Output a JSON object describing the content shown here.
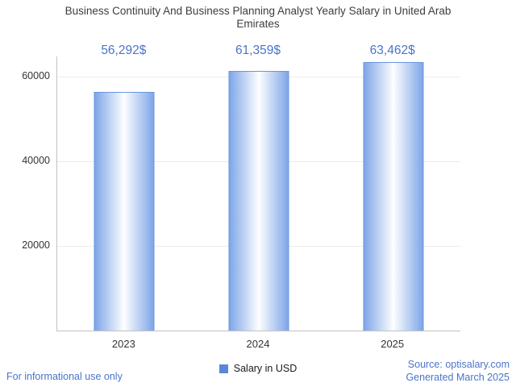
{
  "chart_data": {
    "type": "bar",
    "title": "Business Continuity And Business Planning Analyst Yearly Salary in United Arab Emirates",
    "categories": [
      "2023",
      "2024",
      "2025"
    ],
    "values": [
      56292,
      61359,
      63462
    ],
    "value_labels": [
      "56,292$",
      "61,359$",
      "63,462$"
    ],
    "xlabel": "",
    "ylabel": "",
    "ylim": [
      0,
      64762
    ],
    "yticks": [
      20000,
      40000,
      60000
    ],
    "grid": true,
    "legend": "Salary in USD",
    "legend_position": "bottom"
  },
  "footer": {
    "left": "For informational use only",
    "source": "Source: optisalary.com",
    "generated": "Generated March 2025"
  },
  "colors": {
    "value_text": "#4a74c8",
    "link_text": "#4a74c8",
    "title_text": "#3d3d3d",
    "axis_text": "#333333",
    "gridline": "#ececec",
    "axis_line": "#c2c2c2",
    "bar_edge": "#7fa6e8",
    "bar_center": "#fdfeff",
    "bar_border": "#6a97de",
    "legend_swatch": "#5c87d8"
  }
}
